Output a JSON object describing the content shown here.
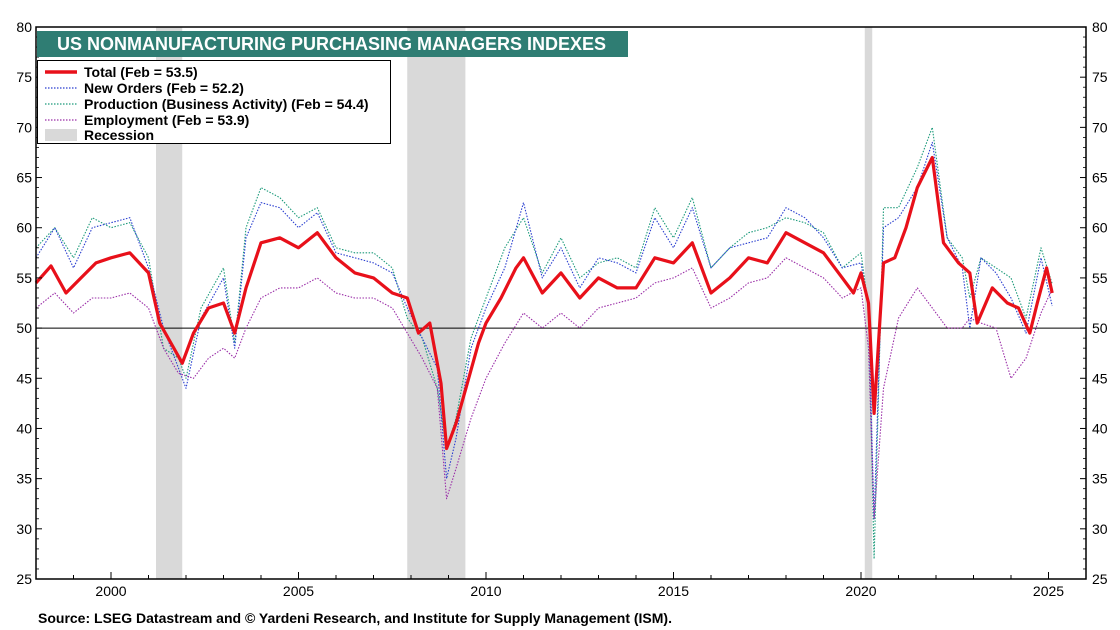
{
  "chart_data": {
    "type": "line",
    "title": "US NONMANUFACTURING PURCHASING MANAGERS INDEXES",
    "source": "Source: LSEG Datastream and © Yardeni Research, and Institute for Supply Management (ISM).",
    "xlim": [
      1998.0,
      2026.0
    ],
    "ylim": [
      25,
      80
    ],
    "x_ticks": [
      "2000",
      "2005",
      "2010",
      "2015",
      "2020",
      "2025"
    ],
    "y_ticks": [
      "25",
      "30",
      "35",
      "40",
      "45",
      "50",
      "55",
      "60",
      "65",
      "70",
      "75",
      "80"
    ],
    "reference_line": 50,
    "legend_position": "top-left",
    "recessions": [
      {
        "start": 2001.2,
        "end": 2001.9
      },
      {
        "start": 2007.9,
        "end": 2009.45
      },
      {
        "start": 2020.1,
        "end": 2020.3
      }
    ],
    "colors": {
      "total": "#e8101a",
      "new_orders": "#2a3fd0",
      "production": "#1e9b7c",
      "employment": "#9b2fa8",
      "recession": "#d9d9d9",
      "title_bg": "#2f7d73"
    },
    "series": [
      {
        "key": "total",
        "name": "Total  (Feb = 53.5)",
        "style": "solid",
        "points": [
          [
            1998.0,
            54.5
          ],
          [
            1998.4,
            56.2
          ],
          [
            1998.8,
            53.5
          ],
          [
            1999.2,
            55.0
          ],
          [
            1999.6,
            56.5
          ],
          [
            2000.0,
            57.0
          ],
          [
            2000.5,
            57.5
          ],
          [
            2001.0,
            55.5
          ],
          [
            2001.3,
            50.5
          ],
          [
            2001.6,
            48.5
          ],
          [
            2001.9,
            46.5
          ],
          [
            2002.2,
            49.5
          ],
          [
            2002.6,
            52.0
          ],
          [
            2003.0,
            52.5
          ],
          [
            2003.3,
            49.5
          ],
          [
            2003.6,
            54.0
          ],
          [
            2004.0,
            58.5
          ],
          [
            2004.5,
            59.0
          ],
          [
            2005.0,
            58.0
          ],
          [
            2005.5,
            59.5
          ],
          [
            2006.0,
            57.0
          ],
          [
            2006.5,
            55.5
          ],
          [
            2007.0,
            55.0
          ],
          [
            2007.5,
            53.5
          ],
          [
            2007.9,
            53.0
          ],
          [
            2008.2,
            49.5
          ],
          [
            2008.5,
            50.5
          ],
          [
            2008.8,
            44.5
          ],
          [
            2008.95,
            38.0
          ],
          [
            2009.2,
            40.5
          ],
          [
            2009.5,
            44.5
          ],
          [
            2009.8,
            48.5
          ],
          [
            2010.0,
            50.5
          ],
          [
            2010.4,
            53.0
          ],
          [
            2010.8,
            56.0
          ],
          [
            2011.0,
            57.0
          ],
          [
            2011.5,
            53.5
          ],
          [
            2012.0,
            55.5
          ],
          [
            2012.5,
            53.0
          ],
          [
            2013.0,
            55.0
          ],
          [
            2013.5,
            54.0
          ],
          [
            2014.0,
            54.0
          ],
          [
            2014.5,
            57.0
          ],
          [
            2015.0,
            56.5
          ],
          [
            2015.5,
            58.5
          ],
          [
            2016.0,
            53.5
          ],
          [
            2016.5,
            55.0
          ],
          [
            2017.0,
            57.0
          ],
          [
            2017.5,
            56.5
          ],
          [
            2018.0,
            59.5
          ],
          [
            2018.5,
            58.5
          ],
          [
            2019.0,
            57.5
          ],
          [
            2019.5,
            55.0
          ],
          [
            2019.8,
            53.5
          ],
          [
            2020.0,
            55.5
          ],
          [
            2020.2,
            52.5
          ],
          [
            2020.35,
            41.5
          ],
          [
            2020.6,
            56.5
          ],
          [
            2020.9,
            57.0
          ],
          [
            2021.2,
            60.0
          ],
          [
            2021.5,
            64.0
          ],
          [
            2021.9,
            67.0
          ],
          [
            2022.2,
            58.5
          ],
          [
            2022.6,
            56.5
          ],
          [
            2022.9,
            55.5
          ],
          [
            2023.1,
            50.5
          ],
          [
            2023.5,
            54.0
          ],
          [
            2023.9,
            52.5
          ],
          [
            2024.2,
            52.0
          ],
          [
            2024.5,
            49.5
          ],
          [
            2024.7,
            52.5
          ],
          [
            2024.95,
            56.0
          ],
          [
            2025.1,
            53.5
          ]
        ]
      },
      {
        "key": "new_orders",
        "name": "New Orders (Feb = 52.2)",
        "style": "dotted",
        "points": [
          [
            1998.0,
            57.0
          ],
          [
            1998.5,
            60.0
          ],
          [
            1999.0,
            56.0
          ],
          [
            1999.5,
            60.0
          ],
          [
            2000.0,
            60.5
          ],
          [
            2000.5,
            61.0
          ],
          [
            2001.0,
            56.0
          ],
          [
            2001.4,
            50.0
          ],
          [
            2001.8,
            46.0
          ],
          [
            2002.0,
            44.0
          ],
          [
            2002.4,
            51.0
          ],
          [
            2003.0,
            55.0
          ],
          [
            2003.3,
            48.0
          ],
          [
            2003.6,
            59.0
          ],
          [
            2004.0,
            62.5
          ],
          [
            2004.5,
            62.0
          ],
          [
            2005.0,
            60.0
          ],
          [
            2005.5,
            61.5
          ],
          [
            2006.0,
            57.5
          ],
          [
            2006.5,
            57.0
          ],
          [
            2007.0,
            56.5
          ],
          [
            2007.5,
            55.5
          ],
          [
            2007.9,
            52.0
          ],
          [
            2008.3,
            49.0
          ],
          [
            2008.7,
            46.0
          ],
          [
            2008.95,
            35.0
          ],
          [
            2009.2,
            39.0
          ],
          [
            2009.6,
            48.0
          ],
          [
            2010.0,
            52.0
          ],
          [
            2010.5,
            56.0
          ],
          [
            2011.0,
            62.5
          ],
          [
            2011.5,
            55.0
          ],
          [
            2012.0,
            58.0
          ],
          [
            2012.5,
            54.0
          ],
          [
            2013.0,
            57.0
          ],
          [
            2013.5,
            56.5
          ],
          [
            2014.0,
            55.5
          ],
          [
            2014.5,
            61.0
          ],
          [
            2015.0,
            58.0
          ],
          [
            2015.5,
            62.0
          ],
          [
            2016.0,
            56.0
          ],
          [
            2016.5,
            58.0
          ],
          [
            2017.0,
            58.5
          ],
          [
            2017.5,
            59.0
          ],
          [
            2018.0,
            62.0
          ],
          [
            2018.5,
            61.0
          ],
          [
            2019.0,
            59.0
          ],
          [
            2019.5,
            56.0
          ],
          [
            2020.0,
            56.5
          ],
          [
            2020.2,
            52.0
          ],
          [
            2020.35,
            31.0
          ],
          [
            2020.6,
            60.0
          ],
          [
            2021.0,
            61.0
          ],
          [
            2021.5,
            64.0
          ],
          [
            2021.9,
            68.5
          ],
          [
            2022.3,
            59.0
          ],
          [
            2022.7,
            56.0
          ],
          [
            2022.9,
            50.0
          ],
          [
            2023.2,
            57.0
          ],
          [
            2023.6,
            55.5
          ],
          [
            2024.0,
            53.0
          ],
          [
            2024.4,
            49.5
          ],
          [
            2024.8,
            57.0
          ],
          [
            2025.1,
            52.2
          ]
        ]
      },
      {
        "key": "production",
        "name": "Production  (Business Activity) (Feb = 54.4)",
        "style": "dotted",
        "points": [
          [
            1998.0,
            58.0
          ],
          [
            1998.5,
            60.0
          ],
          [
            1999.0,
            57.0
          ],
          [
            1999.5,
            61.0
          ],
          [
            2000.0,
            60.0
          ],
          [
            2000.5,
            60.5
          ],
          [
            2001.0,
            57.0
          ],
          [
            2001.4,
            48.0
          ],
          [
            2001.8,
            47.0
          ],
          [
            2002.0,
            45.0
          ],
          [
            2002.4,
            52.0
          ],
          [
            2003.0,
            56.0
          ],
          [
            2003.3,
            48.5
          ],
          [
            2003.6,
            60.0
          ],
          [
            2004.0,
            64.0
          ],
          [
            2004.5,
            63.0
          ],
          [
            2005.0,
            61.0
          ],
          [
            2005.5,
            62.0
          ],
          [
            2006.0,
            58.0
          ],
          [
            2006.5,
            57.5
          ],
          [
            2007.0,
            57.5
          ],
          [
            2007.5,
            56.0
          ],
          [
            2007.9,
            51.0
          ],
          [
            2008.3,
            49.0
          ],
          [
            2008.7,
            44.0
          ],
          [
            2008.95,
            38.0
          ],
          [
            2009.2,
            41.0
          ],
          [
            2009.6,
            49.0
          ],
          [
            2010.0,
            53.0
          ],
          [
            2010.5,
            58.0
          ],
          [
            2011.0,
            61.0
          ],
          [
            2011.5,
            55.5
          ],
          [
            2012.0,
            59.0
          ],
          [
            2012.5,
            55.0
          ],
          [
            2013.0,
            56.5
          ],
          [
            2013.5,
            57.0
          ],
          [
            2014.0,
            56.0
          ],
          [
            2014.5,
            62.0
          ],
          [
            2015.0,
            59.0
          ],
          [
            2015.5,
            63.0
          ],
          [
            2016.0,
            56.0
          ],
          [
            2016.5,
            58.0
          ],
          [
            2017.0,
            59.5
          ],
          [
            2017.5,
            60.0
          ],
          [
            2018.0,
            61.0
          ],
          [
            2018.5,
            60.5
          ],
          [
            2019.0,
            59.5
          ],
          [
            2019.5,
            56.0
          ],
          [
            2020.0,
            57.5
          ],
          [
            2020.2,
            52.0
          ],
          [
            2020.35,
            27.0
          ],
          [
            2020.6,
            62.0
          ],
          [
            2021.0,
            62.0
          ],
          [
            2021.5,
            66.0
          ],
          [
            2021.9,
            70.0
          ],
          [
            2022.3,
            59.0
          ],
          [
            2022.7,
            57.0
          ],
          [
            2022.9,
            53.0
          ],
          [
            2023.2,
            57.0
          ],
          [
            2023.6,
            56.0
          ],
          [
            2024.0,
            55.0
          ],
          [
            2024.4,
            51.0
          ],
          [
            2024.8,
            58.0
          ],
          [
            2025.1,
            54.4
          ]
        ]
      },
      {
        "key": "employment",
        "name": "Employment  (Feb = 53.9)",
        "style": "dotted",
        "points": [
          [
            1998.0,
            52.0
          ],
          [
            1998.5,
            53.5
          ],
          [
            1999.0,
            51.5
          ],
          [
            1999.5,
            53.0
          ],
          [
            2000.0,
            53.0
          ],
          [
            2000.5,
            53.5
          ],
          [
            2001.0,
            52.0
          ],
          [
            2001.4,
            48.0
          ],
          [
            2001.8,
            45.5
          ],
          [
            2002.2,
            45.0
          ],
          [
            2002.6,
            47.0
          ],
          [
            2003.0,
            48.0
          ],
          [
            2003.3,
            47.0
          ],
          [
            2003.6,
            50.0
          ],
          [
            2004.0,
            53.0
          ],
          [
            2004.5,
            54.0
          ],
          [
            2005.0,
            54.0
          ],
          [
            2005.5,
            55.0
          ],
          [
            2006.0,
            53.5
          ],
          [
            2006.5,
            53.0
          ],
          [
            2007.0,
            53.0
          ],
          [
            2007.5,
            52.0
          ],
          [
            2007.9,
            49.5
          ],
          [
            2008.3,
            47.0
          ],
          [
            2008.7,
            44.0
          ],
          [
            2008.95,
            33.0
          ],
          [
            2009.2,
            36.0
          ],
          [
            2009.6,
            41.0
          ],
          [
            2010.0,
            45.0
          ],
          [
            2010.5,
            48.5
          ],
          [
            2011.0,
            51.5
          ],
          [
            2011.5,
            50.0
          ],
          [
            2012.0,
            51.5
          ],
          [
            2012.5,
            50.0
          ],
          [
            2013.0,
            52.0
          ],
          [
            2013.5,
            52.5
          ],
          [
            2014.0,
            53.0
          ],
          [
            2014.5,
            54.5
          ],
          [
            2015.0,
            55.0
          ],
          [
            2015.5,
            56.0
          ],
          [
            2016.0,
            52.0
          ],
          [
            2016.5,
            53.0
          ],
          [
            2017.0,
            54.5
          ],
          [
            2017.5,
            55.0
          ],
          [
            2018.0,
            57.0
          ],
          [
            2018.5,
            56.0
          ],
          [
            2019.0,
            55.0
          ],
          [
            2019.5,
            53.0
          ],
          [
            2020.0,
            54.0
          ],
          [
            2020.2,
            48.0
          ],
          [
            2020.35,
            31.0
          ],
          [
            2020.6,
            44.0
          ],
          [
            2021.0,
            51.0
          ],
          [
            2021.5,
            54.0
          ],
          [
            2021.9,
            52.0
          ],
          [
            2022.3,
            50.0
          ],
          [
            2022.7,
            50.0
          ],
          [
            2022.9,
            51.0
          ],
          [
            2023.2,
            50.5
          ],
          [
            2023.6,
            50.0
          ],
          [
            2024.0,
            45.0
          ],
          [
            2024.4,
            47.0
          ],
          [
            2024.8,
            51.5
          ],
          [
            2025.1,
            53.9
          ]
        ]
      }
    ],
    "legend_recession_label": "Recession"
  }
}
